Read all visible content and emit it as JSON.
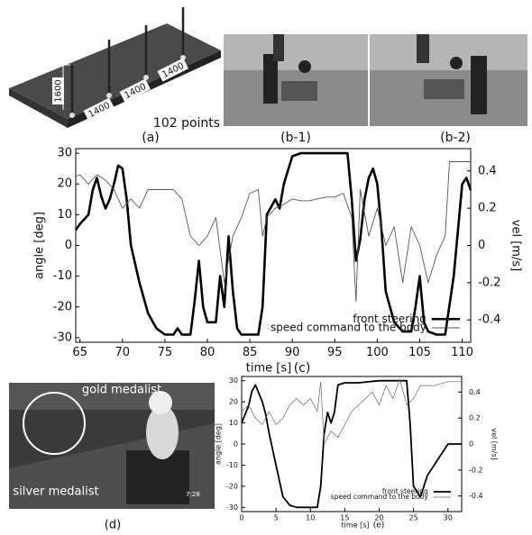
{
  "figure": {
    "a": {
      "label": "(a)",
      "points": "102 points",
      "height": "1600",
      "spacings": [
        "1400",
        "1400",
        "1400"
      ]
    },
    "b1": "(b-1)",
    "b2": "(b-2)",
    "d": {
      "label": "(d)",
      "gold": "gold medalist",
      "silver": "silver medalist",
      "clock": "7:28"
    }
  },
  "chart_data": [
    {
      "type": "line",
      "panel_label": "(c)",
      "x_label": "time [s]",
      "y_label": "angle [deg]",
      "y2_label": "vel [m/s]",
      "xlim": [
        64.5,
        111
      ],
      "xticks": [
        65,
        70,
        75,
        80,
        85,
        90,
        95,
        100,
        105,
        110
      ],
      "ylim": [
        -31.5,
        31.5
      ],
      "yticks": [
        -30,
        -20,
        -10,
        0,
        10,
        20,
        30
      ],
      "y2lim": [
        -0.52,
        0.52
      ],
      "y2ticks": [
        -0.4,
        -0.2,
        0,
        0.2,
        0.4
      ],
      "legend": "lower right",
      "series": [
        {
          "name": "front steering",
          "color": "#000000",
          "width": 2.6,
          "x": [
            64.5,
            65,
            66,
            66.5,
            67,
            67.5,
            68,
            68.5,
            69,
            69.5,
            70,
            70.5,
            71,
            72,
            73,
            74,
            75,
            76,
            76.5,
            77,
            78,
            78.5,
            79,
            79.5,
            80,
            81,
            81.5,
            82,
            82.5,
            83,
            83.5,
            84,
            85,
            86,
            86.5,
            87,
            88,
            88.5,
            89,
            90,
            91,
            93,
            95,
            96.5,
            97,
            97.5,
            98,
            98.5,
            99,
            99.5,
            100,
            100.5,
            101,
            102,
            103,
            104,
            104.5,
            105,
            105.5,
            106,
            107,
            108,
            109,
            110,
            110.5,
            111
          ],
          "values": [
            5,
            7,
            10,
            18,
            22,
            16,
            12,
            15,
            20,
            26,
            25,
            15,
            0,
            -12,
            -22,
            -27,
            -29,
            -29,
            -27,
            -29,
            -29,
            -18,
            -5,
            -20,
            -25,
            -25,
            -10,
            -20,
            3,
            -15,
            -27,
            -29,
            -29,
            -29,
            -20,
            10,
            15,
            12,
            20,
            29,
            30,
            30,
            30,
            30,
            15,
            -5,
            2,
            15,
            22,
            25,
            20,
            5,
            -15,
            -25,
            -28,
            -28,
            -20,
            -10,
            -25,
            -28,
            -29,
            -29,
            -10,
            20,
            22,
            18
          ]
        },
        {
          "name": "speed command to the body",
          "color": "#555555",
          "width": 0.9,
          "x": [
            64.5,
            65,
            66,
            67,
            68,
            69,
            70,
            71,
            72,
            73,
            74,
            76,
            77,
            78,
            79,
            80,
            81,
            82,
            83,
            84,
            85,
            86,
            86.5,
            87,
            88,
            89,
            90,
            91,
            92,
            93,
            94,
            95,
            96,
            97,
            97.5,
            98,
            99,
            100,
            100.5,
            101,
            102,
            103,
            104,
            105,
            106,
            107,
            108,
            108.5,
            111
          ],
          "values": [
            0.37,
            0.38,
            0.33,
            0.38,
            0.35,
            0.3,
            0.2,
            0.25,
            0.2,
            0.3,
            0.3,
            0.3,
            0.25,
            0.05,
            0.0,
            0.05,
            0.15,
            -0.2,
            0.05,
            0.15,
            0.28,
            0.3,
            0.05,
            0.15,
            0.2,
            0.22,
            0.25,
            0.24,
            0.24,
            0.25,
            0.26,
            0.26,
            0.28,
            0.15,
            -0.3,
            0.3,
            0.05,
            0.2,
            0.1,
            0,
            0.1,
            -0.2,
            0.1,
            0.0,
            -0.2,
            -0.05,
            0.05,
            0.45,
            0.45
          ],
          "axis": "y2"
        }
      ]
    },
    {
      "type": "line",
      "panel_label": "(e)",
      "x_label": "time [s]",
      "y_label": "angle [deg]",
      "y2_label": "vel [m/s]",
      "xlim": [
        0,
        32
      ],
      "xticks": [
        0,
        5,
        10,
        15,
        20,
        25,
        30
      ],
      "ylim": [
        -32,
        32
      ],
      "yticks": [
        -30,
        -20,
        -10,
        0,
        10,
        20,
        30
      ],
      "y2lim": [
        -0.52,
        0.52
      ],
      "y2ticks": [
        -0.4,
        -0.2,
        0,
        0.2,
        0.4
      ],
      "legend": "lower right",
      "series": [
        {
          "name": "front steering",
          "color": "#000000",
          "width": 1.8,
          "x": [
            0,
            1,
            1.5,
            2,
            3,
            3.5,
            4,
            5,
            6,
            7,
            8,
            11,
            11.5,
            12,
            12.5,
            13,
            13.5,
            14,
            15,
            17,
            20,
            23,
            24,
            24.5,
            25,
            26,
            27,
            28,
            29,
            30,
            32
          ],
          "values": [
            10,
            18,
            25,
            28,
            20,
            14,
            5,
            -10,
            -25,
            -29,
            -30,
            -30,
            -20,
            5,
            15,
            10,
            15,
            28,
            29,
            29,
            30,
            30,
            30,
            10,
            -20,
            -25,
            -15,
            -10,
            -5,
            0,
            0
          ]
        },
        {
          "name": "speed command to the body",
          "color": "#666666",
          "width": 0.7,
          "x": [
            0,
            1,
            2,
            3,
            4,
            5,
            6,
            7,
            8,
            9,
            10,
            11,
            11.5,
            12,
            13,
            14,
            15,
            16,
            17,
            18,
            19,
            20,
            21,
            22,
            23,
            24,
            25,
            26,
            28,
            30,
            32
          ],
          "values": [
            0.25,
            0.3,
            0.2,
            0.15,
            0.25,
            0.15,
            0.2,
            0.3,
            0.35,
            0.3,
            0.35,
            0.25,
            0.48,
            0.0,
            0.1,
            0.05,
            0.15,
            0.25,
            0.3,
            0.35,
            0.4,
            0.3,
            0.45,
            0.35,
            0.5,
            0.3,
            0.35,
            0.45,
            0.45,
            0.48,
            0.48
          ],
          "axis": "y2"
        }
      ]
    }
  ]
}
